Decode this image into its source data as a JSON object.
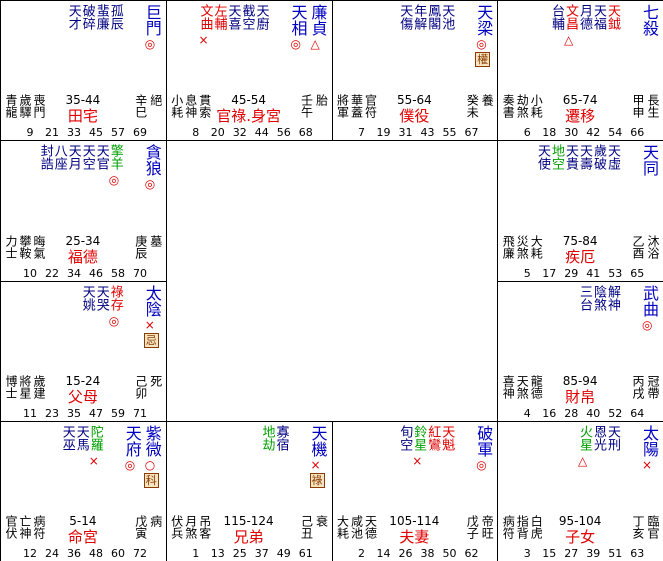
{
  "palaces": [
    {
      "main": [
        {
          "name": "巨門",
          "sign": "◎"
        }
      ],
      "stars": [
        {
          "name": "孤辰",
          "color": "#000080"
        },
        {
          "name": "蜚廉",
          "color": "#000080"
        },
        {
          "name": "破碎",
          "color": "#000080"
        },
        {
          "name": "天才",
          "color": "#000080"
        }
      ],
      "gods": [
        "青龍",
        "歲驛",
        "喪門"
      ],
      "range": "35-44",
      "palace": "田宅",
      "stem": "辛巳",
      "phase": "絕",
      "ages": [
        9,
        21,
        33,
        45,
        57,
        69
      ]
    },
    {
      "main": [
        {
          "name": "廉貞",
          "sign": "△"
        },
        {
          "name": "天相",
          "sign": "◎"
        }
      ],
      "stars": [
        {
          "name": "天廚",
          "color": "#000080"
        },
        {
          "name": "截空",
          "color": "#000080"
        },
        {
          "name": "天喜",
          "color": "#000080"
        },
        {
          "name": "左輔",
          "color": "#e00000"
        },
        {
          "name": "文曲",
          "color": "#e00000",
          "sign": "×"
        }
      ],
      "gods": [
        "小耗",
        "息神",
        "貫索"
      ],
      "range": "45-54",
      "palace": "官祿.身宮",
      "stem": "壬午",
      "phase": "胎",
      "ages": [
        8,
        20,
        32,
        44,
        56,
        68
      ]
    },
    {
      "main": [
        {
          "name": "天梁",
          "sign": "◎",
          "hua": "權"
        }
      ],
      "stars": [
        {
          "name": "天池",
          "color": "#000080"
        },
        {
          "name": "鳳閣",
          "color": "#000080"
        },
        {
          "name": "年解",
          "color": "#000080"
        },
        {
          "name": "天傷",
          "color": "#000080"
        }
      ],
      "gods": [
        "將軍",
        "華蓋",
        "官符"
      ],
      "range": "55-64",
      "palace": "僕役",
      "stem": "癸未",
      "phase": "養",
      "ages": [
        7,
        19,
        31,
        43,
        55,
        67
      ]
    },
    {
      "main": [
        {
          "name": "七殺"
        }
      ],
      "stars": [
        {
          "name": "天鉞",
          "color": "#e00000"
        },
        {
          "name": "天福",
          "color": "#000080"
        },
        {
          "name": "月德",
          "color": "#000080"
        },
        {
          "name": "文昌",
          "color": "#e00000",
          "sign": "△"
        },
        {
          "name": "台輔",
          "color": "#000080"
        }
      ],
      "gods": [
        "奏書",
        "劫煞",
        "小耗"
      ],
      "range": "65-74",
      "palace": "遷移",
      "stem": "甲申",
      "phase": "長生",
      "ages": [
        6,
        18,
        30,
        42,
        54,
        66
      ]
    },
    {
      "main": [
        {
          "name": "天同"
        }
      ],
      "stars": [
        {
          "name": "天虛",
          "color": "#000080"
        },
        {
          "name": "歲破",
          "color": "#000080"
        },
        {
          "name": "天壽",
          "color": "#000080"
        },
        {
          "name": "天貴",
          "color": "#000080"
        },
        {
          "name": "地空",
          "color": "#00a000"
        },
        {
          "name": "天使",
          "color": "#000080"
        }
      ],
      "gods": [
        "飛廉",
        "災煞",
        "大耗"
      ],
      "range": "75-84",
      "palace": "疾厄",
      "stem": "乙酉",
      "phase": "沐浴",
      "ages": [
        5,
        17,
        29,
        41,
        53,
        65
      ]
    },
    {
      "main": [
        {
          "name": "武曲",
          "sign": "◎"
        }
      ],
      "stars": [
        {
          "name": "解神",
          "color": "#000080"
        },
        {
          "name": "陰煞",
          "color": "#000080"
        },
        {
          "name": "三台",
          "color": "#000080"
        }
      ],
      "gods": [
        "喜神",
        "天煞",
        "龍德"
      ],
      "range": "85-94",
      "palace": "財帛",
      "stem": "丙戌",
      "phase": "冠帶",
      "ages": [
        4,
        16,
        28,
        40,
        52,
        64
      ]
    },
    {
      "main": [
        {
          "name": "太陽",
          "sign": "×"
        }
      ],
      "stars": [
        {
          "name": "天刑",
          "color": "#000080"
        },
        {
          "name": "恩光",
          "color": "#000080"
        },
        {
          "name": "火星",
          "color": "#00a000",
          "sign": "△"
        }
      ],
      "gods": [
        "病符",
        "指背",
        "白虎"
      ],
      "range": "95-104",
      "palace": "子女",
      "stem": "丁亥",
      "phase": "臨官",
      "ages": [
        3,
        15,
        27,
        39,
        51,
        63
      ]
    },
    {
      "main": [
        {
          "name": "破軍",
          "sign": "◎"
        }
      ],
      "stars": [
        {
          "name": "天魁",
          "color": "#e00000"
        },
        {
          "name": "紅鸞",
          "color": "#e00000"
        },
        {
          "name": "鈴星",
          "color": "#00a000",
          "sign": "×"
        },
        {
          "name": "旬空",
          "color": "#000080"
        }
      ],
      "gods": [
        "大耗",
        "咸池",
        "天德"
      ],
      "range": "105-114",
      "palace": "夫妻",
      "stem": "戊子",
      "phase": "帝旺",
      "ages": [
        2,
        14,
        26,
        38,
        50,
        62
      ]
    },
    {
      "main": [
        {
          "name": "天機",
          "sign": "×",
          "hua": "祿"
        }
      ],
      "stars": [
        {
          "name": "寡宿",
          "color": "#000080"
        },
        {
          "name": "地劫",
          "color": "#00a000"
        }
      ],
      "gods": [
        "伏兵",
        "月煞",
        "吊客"
      ],
      "range": "115-124",
      "palace": "兄弟",
      "stem": "己丑",
      "phase": "衰",
      "ages": [
        1,
        13,
        25,
        37,
        49,
        61
      ]
    },
    {
      "main": [
        {
          "name": "紫微",
          "sign": "○",
          "hua": "科"
        },
        {
          "name": "天府",
          "sign": "◎"
        }
      ],
      "stars": [
        {
          "name": "陀羅",
          "color": "#00a000",
          "sign": "×"
        },
        {
          "name": "天馬",
          "color": "#000080"
        },
        {
          "name": "天巫",
          "color": "#000080"
        }
      ],
      "gods": [
        "官伏",
        "亡神",
        "病符"
      ],
      "range": "5-14",
      "palace": "命宮",
      "stem": "戊寅",
      "phase": "病",
      "ages": [
        12,
        24,
        36,
        48,
        60,
        72
      ]
    },
    {
      "main": [
        {
          "name": "太陰",
          "sign": "×",
          "hua": "忌"
        }
      ],
      "stars": [
        {
          "name": "祿存",
          "color": "#e00000",
          "sign": "◎"
        },
        {
          "name": "天哭",
          "color": "#000080"
        },
        {
          "name": "天姚",
          "color": "#000080"
        }
      ],
      "gods": [
        "博士",
        "將星",
        "歲建"
      ],
      "range": "15-24",
      "palace": "父母",
      "stem": "己卯",
      "phase": "死",
      "ages": [
        11,
        23,
        35,
        47,
        59,
        71
      ]
    },
    {
      "main": [
        {
          "name": "貪狼",
          "sign": "◎"
        }
      ],
      "stars": [
        {
          "name": "擎羊",
          "color": "#00a000",
          "sign": "◎"
        },
        {
          "name": "天官",
          "color": "#000080"
        },
        {
          "name": "天空",
          "color": "#000080"
        },
        {
          "name": "天月",
          "color": "#000080"
        },
        {
          "name": "八座",
          "color": "#000080"
        },
        {
          "name": "封誥",
          "color": "#000080"
        }
      ],
      "gods": [
        "力士",
        "攀鞍",
        "晦氣"
      ],
      "range": "25-34",
      "palace": "福德",
      "stem": "庚辰",
      "phase": "墓",
      "ages": [
        10,
        22,
        34,
        46,
        58,
        70
      ]
    }
  ]
}
